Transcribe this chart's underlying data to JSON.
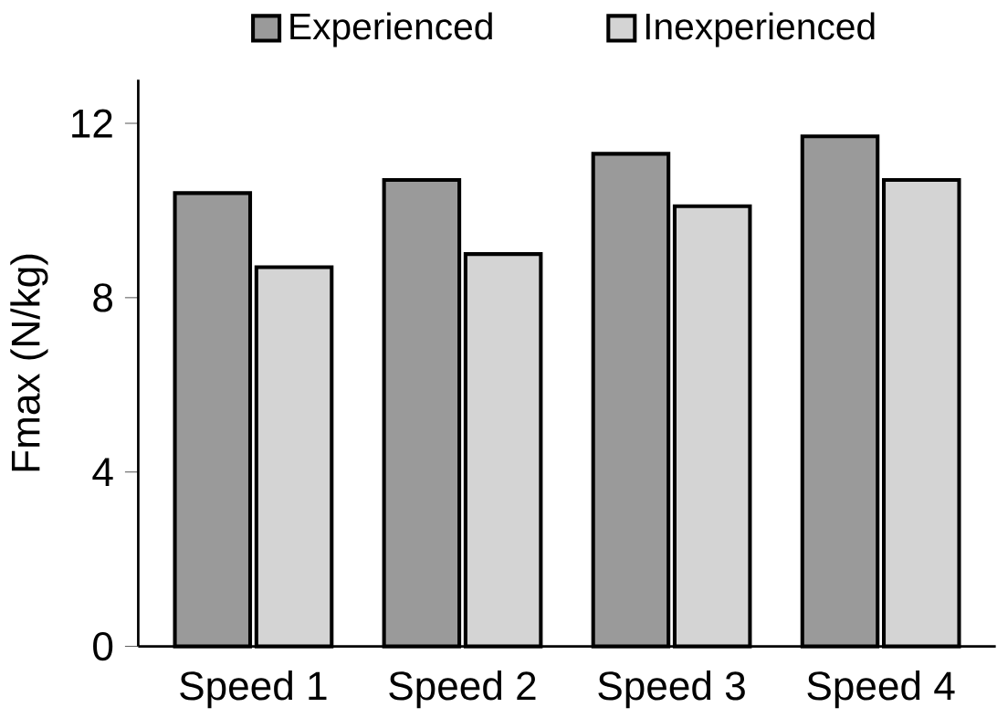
{
  "chart_data": {
    "type": "bar",
    "ylabel": "Fmax (N/kg)",
    "categories": [
      "Speed 1",
      "Speed 2",
      "Speed 3",
      "Speed 4"
    ],
    "series": [
      {
        "name": "Experienced",
        "color": "#9a9a9a",
        "values": [
          10.4,
          10.7,
          11.3,
          11.7
        ]
      },
      {
        "name": "Inexperienced",
        "color": "#d4d4d4",
        "values": [
          8.7,
          9.0,
          10.1,
          10.7
        ]
      }
    ],
    "ylim": [
      0,
      13
    ],
    "yticks": [
      0,
      4,
      8,
      12
    ],
    "legend": "top"
  }
}
